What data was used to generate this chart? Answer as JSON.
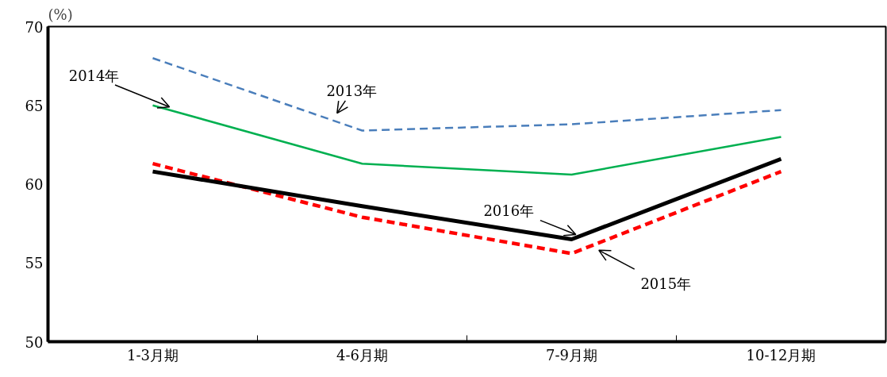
{
  "chart_data": {
    "type": "line",
    "ylabel": "(%)",
    "categories": [
      "1-3月期",
      "4-6月期",
      "7-9月期",
      "10-12月期"
    ],
    "ylim": [
      50,
      70
    ],
    "yticks": [
      50,
      55,
      60,
      65,
      70
    ],
    "grid": false,
    "marker": "none",
    "series": [
      {
        "name": "2013年",
        "color": "#4a7ebb",
        "line_style": "dashed",
        "values": [
          68.0,
          63.4,
          63.8,
          64.7
        ]
      },
      {
        "name": "2014年",
        "color": "#00b050",
        "line_style": "solid",
        "values": [
          65.0,
          61.3,
          60.6,
          63.0
        ]
      },
      {
        "name": "2015年",
        "color": "#ff0000",
        "line_style": "dashed",
        "values": [
          61.3,
          57.9,
          55.6,
          60.8
        ]
      },
      {
        "name": "2016年",
        "color": "#000000",
        "line_style": "solid",
        "values": [
          60.8,
          58.6,
          56.5,
          61.6
        ]
      }
    ]
  }
}
